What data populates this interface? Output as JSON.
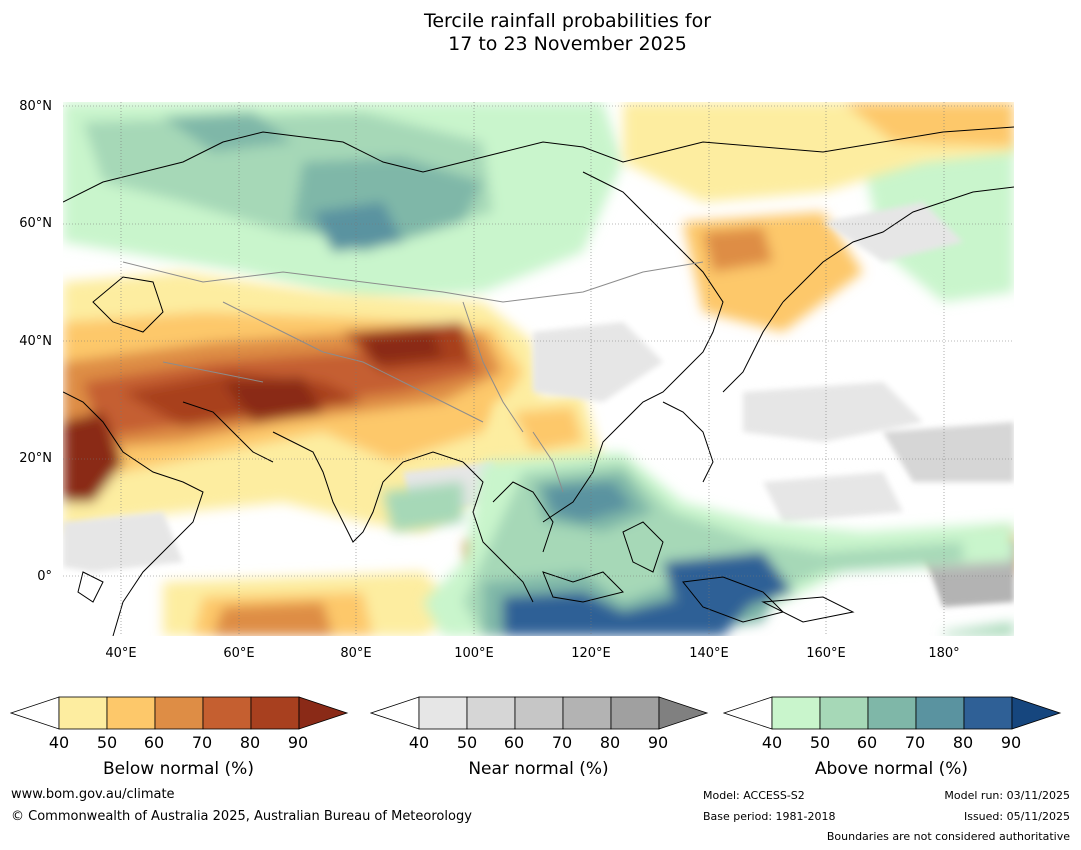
{
  "title": {
    "line1": "Tercile rainfall probabilities for",
    "line2": "17 to 23 November 2025"
  },
  "map": {
    "lat_labels": [
      "80°N",
      "60°N",
      "40°N",
      "20°N",
      "0°"
    ],
    "lon_labels": [
      "40°E",
      "60°E",
      "80°E",
      "100°E",
      "120°E",
      "140°E",
      "160°E",
      "180°"
    ],
    "grid_lines": "dotted"
  },
  "legends": [
    {
      "title": "Below normal (%)",
      "ticks": [
        "40",
        "50",
        "60",
        "70",
        "80",
        "90"
      ],
      "colors": [
        "#fdeda0",
        "#fdc86a",
        "#de8d45",
        "#c55f30",
        "#a8401f",
        "#8a2a17"
      ]
    },
    {
      "title": "Near normal (%)",
      "ticks": [
        "40",
        "50",
        "60",
        "70",
        "80",
        "90"
      ],
      "colors": [
        "#e6e6e6",
        "#d6d6d6",
        "#c6c6c6",
        "#b3b3b3",
        "#a0a0a0",
        "#808080"
      ]
    },
    {
      "title": "Above normal (%)",
      "ticks": [
        "40",
        "50",
        "60",
        "70",
        "80",
        "90"
      ],
      "colors": [
        "#c9f5cc",
        "#a6d8b7",
        "#7fb7a8",
        "#5a93a0",
        "#2f6096",
        "#16467e"
      ]
    }
  ],
  "footer": {
    "website": "www.bom.gov.au/climate",
    "copyright": "© Commonwealth of Australia 2025, Australian Bureau of Meteorology",
    "model": "Model: ACCESS-S2",
    "base_period": "Base period: 1981-2018",
    "model_run": "Model run: 03/11/2025",
    "issued": "Issued: 05/11/2025",
    "boundaries_note": "Boundaries are not considered authoritative"
  }
}
